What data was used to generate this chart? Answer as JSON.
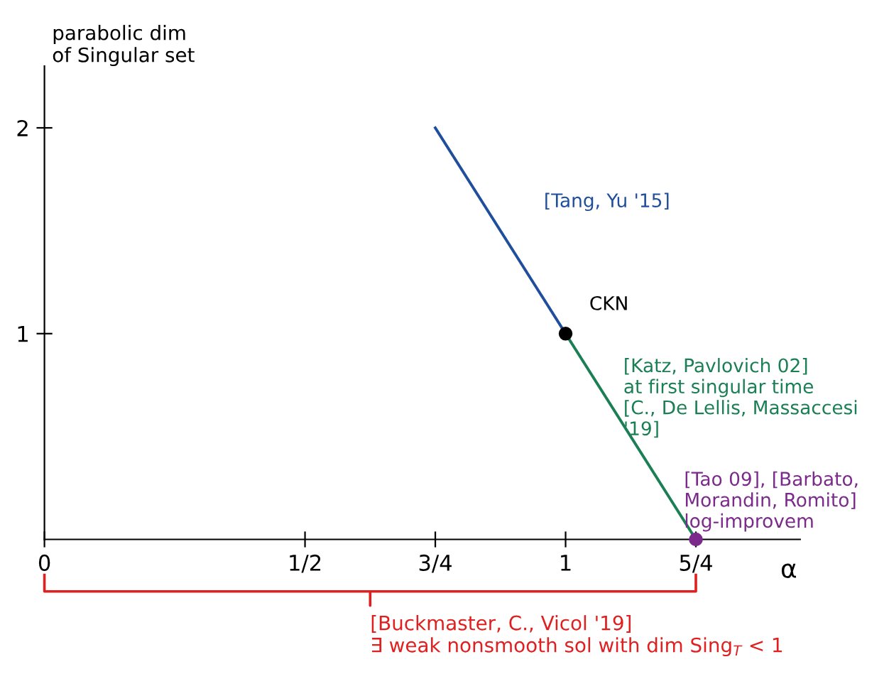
{
  "chart_data": {
    "type": "line",
    "xlabel": "α",
    "ylabel": "parabolic dim\nof Singular set",
    "xlim": [
      0,
      1.45
    ],
    "ylim": [
      0,
      2.3
    ],
    "xticks": [
      0,
      {
        "value": 0.5,
        "label": "1/2"
      },
      {
        "value": 0.75,
        "label": "3/4"
      },
      1,
      {
        "value": 1.25,
        "label": "5/4"
      }
    ],
    "yticks": [
      1,
      2
    ],
    "series": [
      {
        "color": "#1f4e9c",
        "x": [
          0.75,
          1
        ],
        "values": [
          2,
          1
        ]
      },
      {
        "color": "#1a7f55",
        "x": [
          1,
          1.25
        ],
        "values": [
          1,
          0
        ]
      },
      {
        "type": "scatter",
        "marker": "circle",
        "colors": [
          "#000000",
          "#7b2a8c"
        ],
        "x": [
          1,
          1.25
        ],
        "values": [
          1,
          0
        ]
      }
    ],
    "annotations": [
      {
        "text": "[Tang, Yu '15]",
        "x": 0.875,
        "y": 1.5
      },
      {
        "text": "CKN",
        "x": 1,
        "y": 1
      },
      {
        "text": "[Katz, Pavlovich 02]\nat first singular time\n[C., De Lellis, Massaccesi\n'19]",
        "x": 1.02,
        "y": 0.92
      },
      {
        "text": "[Tao 09], [Barbato,\nMorandin, Romito]\nlog-improvem",
        "x": 1.25,
        "y": 0
      },
      "[Buckmaster, C., Vicol '19]\n∃ weak nonsmooth sol with dim Sing$_{T}$ < 1"
    ],
    "legend": false,
    "grid": false
  }
}
